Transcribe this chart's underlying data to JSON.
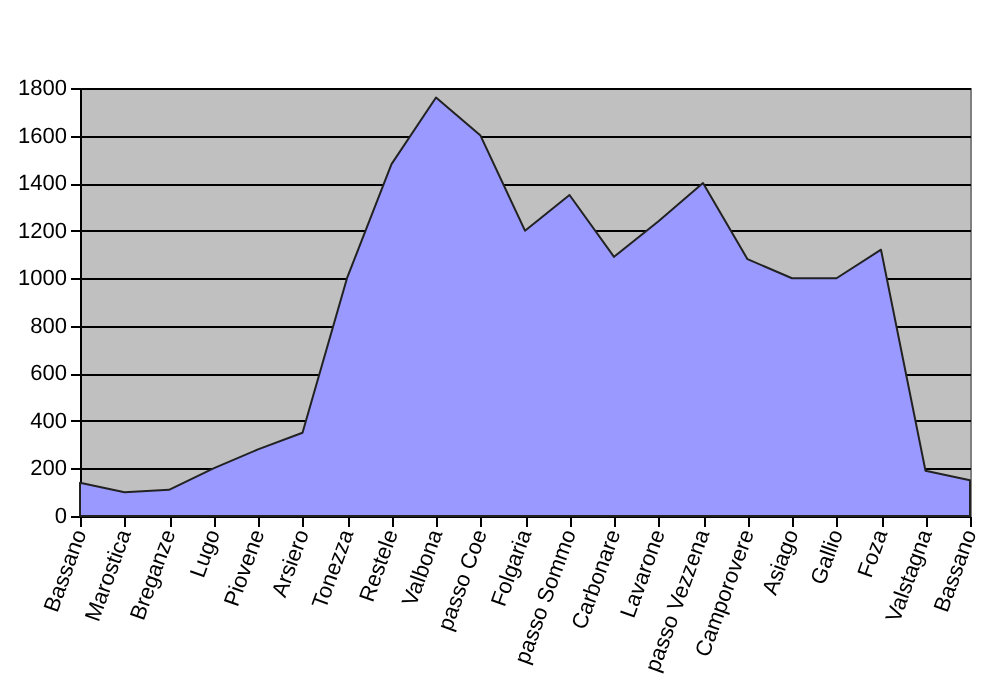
{
  "chart_data": {
    "type": "area",
    "categories": [
      "Bassano",
      "Marostica",
      "Breganze",
      "Lugo",
      "Piovene",
      "Arsiero",
      "Tonezza",
      "Restele",
      "Valbona",
      "passo Coe",
      "Folgaria",
      "passo Sommo",
      "Carbonare",
      "Lavarone",
      "passo Vezzena",
      "Camporovere",
      "Asiago",
      "Gallio",
      "Foza",
      "Valstagna",
      "Bassano"
    ],
    "values": [
      140,
      100,
      110,
      200,
      280,
      350,
      1000,
      1480,
      1760,
      1600,
      1200,
      1350,
      1090,
      1240,
      1400,
      1080,
      1000,
      1000,
      1120,
      190,
      150
    ],
    "color": "#9999ff",
    "ylim": [
      0,
      1800
    ],
    "yticks": [
      0,
      200,
      400,
      600,
      800,
      1000,
      1200,
      1400,
      1600,
      1800
    ],
    "grid": "y"
  }
}
